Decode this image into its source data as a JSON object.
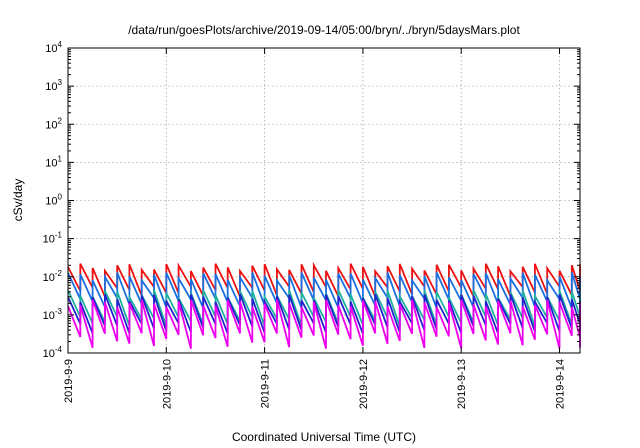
{
  "chart_data": {
    "type": "line",
    "title": "/data/run/goesPlots/archive/2019-09-14/05:00/bryn/../bryn/5daysMars.plot",
    "xlabel": "Coordinated Universal Time (UTC)",
    "ylabel": "cSv/day",
    "yscale": "log",
    "ylim": [
      0.0001,
      10000
    ],
    "y_ticks": [
      {
        "value": 0.0001,
        "base": "10",
        "exp": "-4"
      },
      {
        "value": 0.001,
        "base": "10",
        "exp": "-3"
      },
      {
        "value": 0.01,
        "base": "10",
        "exp": "-2"
      },
      {
        "value": 0.1,
        "base": "10",
        "exp": "-1"
      },
      {
        "value": 1,
        "base": "10",
        "exp": "0"
      },
      {
        "value": 10,
        "base": "10",
        "exp": "1"
      },
      {
        "value": 100,
        "base": "10",
        "exp": "2"
      },
      {
        "value": 1000,
        "base": "10",
        "exp": "3"
      },
      {
        "value": 10000,
        "base": "10",
        "exp": "4"
      }
    ],
    "xlim": [
      "2019-09-09T00:00",
      "2019-09-14T05:00"
    ],
    "x_ticks": [
      "2019-9-9",
      "2019-9-10",
      "2019-9-11",
      "2019-9-12",
      "2019-9-13",
      "2019-9-14"
    ],
    "grid": true,
    "sawtooth_period_hours": 3,
    "series": [
      {
        "color": "#ee1111",
        "peak": [
          0.022,
          0.014
        ],
        "trough": [
          0.0055,
          0.003
        ]
      },
      {
        "color": "#1a6fe0",
        "peak": [
          0.013,
          0.008
        ],
        "trough": [
          0.0028,
          0.0015
        ]
      },
      {
        "color": "#1fb0a0",
        "peak": [
          0.0045,
          0.0028
        ],
        "trough": [
          0.0009,
          0.0005
        ]
      },
      {
        "color": "#2222cc",
        "peak": [
          0.0035,
          0.0022
        ],
        "trough": [
          0.0006,
          0.00032
        ]
      },
      {
        "color": "#ee00ee",
        "peak": [
          0.0025,
          0.0016
        ],
        "trough": [
          0.00033,
          0.00013
        ]
      }
    ]
  }
}
